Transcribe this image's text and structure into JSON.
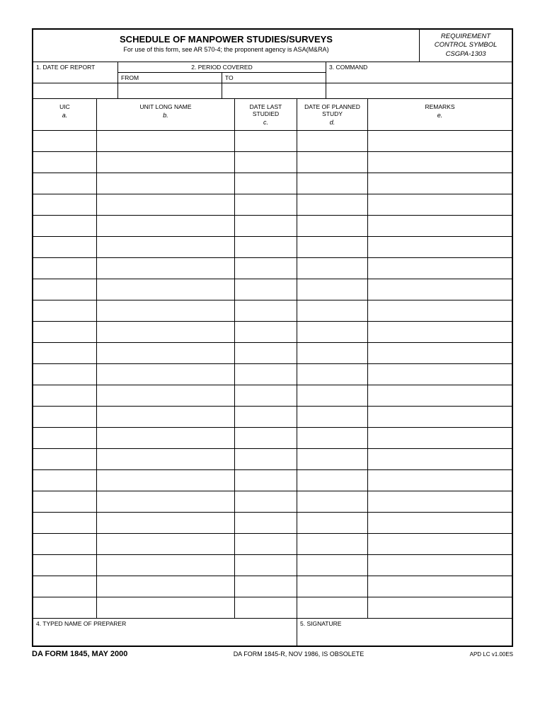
{
  "header": {
    "title": "SCHEDULE OF MANPOWER STUDIES/SURVEYS",
    "subtitle": "For use of this form, see AR 570-4; the proponent agency is ASA(M&RA)",
    "req_line1": "REQUIREMENT",
    "req_line2": "CONTROL SYMBOL",
    "req_line3": "CSGPA-1303"
  },
  "info": {
    "field1": "1.  DATE OF REPORT",
    "field2": "2.  PERIOD COVERED",
    "field2_from": "FROM",
    "field2_to": "TO",
    "field3": "3.  COMMAND"
  },
  "columns": {
    "uic": "UIC",
    "uic_sub": "a.",
    "name": "UNIT LONG NAME",
    "name_sub": "b.",
    "date1": "DATE LAST STUDIED",
    "date1_sub": "c.",
    "date2": "DATE OF PLANNED STUDY",
    "date2_sub": "d.",
    "remarks": "REMARKS",
    "remarks_sub": "e."
  },
  "row_count": 23,
  "bottom": {
    "preparer": "4.  TYPED NAME OF PREPARER",
    "signature": "5.  SIGNATURE"
  },
  "footer": {
    "left": "DA FORM 1845, MAY 2000",
    "center": "DA FORM 1845-R, NOV 1986, IS OBSOLETE",
    "right": "APD LC v1.00ES"
  }
}
